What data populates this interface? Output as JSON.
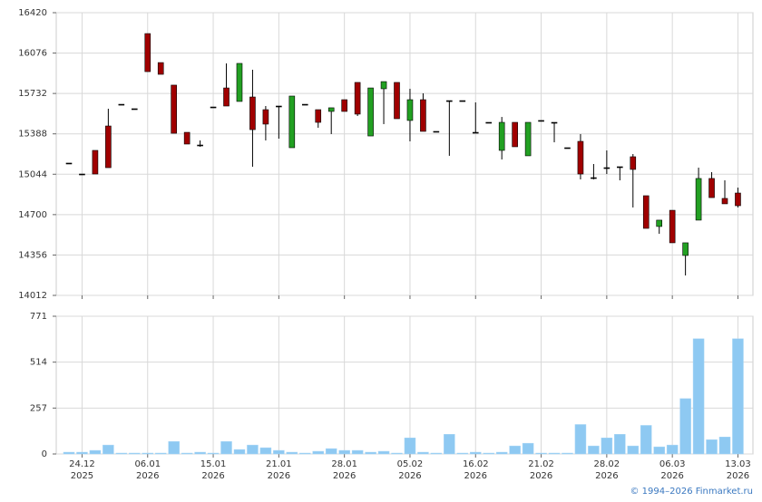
{
  "chart_data": {
    "type": "candlestick",
    "categories": [
      null,
      [
        "24.12",
        "2025"
      ],
      null,
      null,
      null,
      null,
      [
        "06.01",
        "2026"
      ],
      null,
      null,
      null,
      null,
      [
        "15.01",
        "2026"
      ],
      null,
      null,
      null,
      null,
      [
        "21.01",
        "2026"
      ],
      null,
      null,
      null,
      null,
      [
        "28.01",
        "2026"
      ],
      null,
      null,
      null,
      null,
      [
        "05.02",
        "2026"
      ],
      null,
      null,
      null,
      null,
      [
        "16.02",
        "2026"
      ],
      null,
      null,
      null,
      null,
      [
        "21.02",
        "2026"
      ],
      null,
      null,
      null,
      null,
      [
        "28.02",
        "2026"
      ],
      null,
      null,
      null,
      null,
      [
        "06.03",
        "2026"
      ],
      null,
      null,
      null,
      null,
      [
        "13.03",
        "2026"
      ]
    ],
    "open": [
      15139,
      15046,
      15247,
      15455,
      15640,
      15602,
      16242,
      15995,
      15803,
      15401,
      15293,
      15617,
      15779,
      15664,
      15702,
      15594,
      15625,
      15270,
      15640,
      15594,
      15579,
      15679,
      15826,
      15370,
      15772,
      15826,
      15502,
      15679,
      15409,
      15671,
      15671,
      15401,
      15486,
      15247,
      15486,
      15201,
      15502,
      15486,
      15270,
      15324,
      15015,
      15100,
      15108,
      15193,
      14861,
      14599,
      14737,
      14352,
      14653,
      15008,
      14838,
      14884
    ],
    "high": [
      15139,
      15046,
      15247,
      15602,
      15640,
      15602,
      16242,
      15995,
      15803,
      15401,
      15332,
      15617,
      15988,
      15988,
      15934,
      15625,
      15625,
      15710,
      15640,
      15594,
      15610,
      15679,
      15826,
      15779,
      15833,
      15826,
      15772,
      15733,
      15409,
      15671,
      15671,
      15656,
      15486,
      15532,
      15486,
      15486,
      15502,
      15486,
      15270,
      15386,
      15131,
      15247,
      15108,
      15216,
      14861,
      14653,
      14737,
      14460,
      15100,
      15062,
      14992,
      14930
    ],
    "low": [
      15139,
      15046,
      15046,
      15100,
      15640,
      15602,
      15918,
      15895,
      15393,
      15301,
      15278,
      15617,
      15625,
      15664,
      15108,
      15332,
      15347,
      15270,
      15640,
      15440,
      15386,
      15579,
      15540,
      15370,
      15471,
      15517,
      15324,
      15409,
      15409,
      15201,
      15671,
      15401,
      15486,
      15170,
      15278,
      15201,
      15502,
      15316,
      15270,
      15000,
      15000,
      15046,
      14992,
      14761,
      14583,
      14537,
      14460,
      14182,
      14653,
      14845,
      14792,
      14761
    ],
    "close": [
      15139,
      15046,
      15046,
      15100,
      15640,
      15602,
      15918,
      15895,
      15393,
      15301,
      15293,
      15617,
      15625,
      15988,
      15424,
      15471,
      15625,
      15710,
      15640,
      15486,
      15610,
      15579,
      15556,
      15779,
      15833,
      15517,
      15679,
      15409,
      15409,
      15671,
      15671,
      15401,
      15486,
      15486,
      15278,
      15486,
      15502,
      15486,
      15270,
      15046,
      15015,
      15100,
      15108,
      15085,
      14583,
      14653,
      14460,
      14460,
      15008,
      14845,
      14792,
      14776
    ],
    "volume": [
      10,
      10,
      20,
      50,
      5,
      5,
      5,
      5,
      70,
      5,
      10,
      5,
      70,
      25,
      50,
      35,
      20,
      10,
      5,
      15,
      30,
      20,
      20,
      10,
      15,
      5,
      90,
      10,
      5,
      110,
      5,
      10,
      5,
      10,
      45,
      60,
      5,
      5,
      5,
      165,
      45,
      90,
      110,
      45,
      160,
      40,
      50,
      310,
      645,
      80,
      95,
      645
    ],
    "ylim": [
      14012,
      16420
    ],
    "yticks": [
      14012,
      14356,
      14700,
      15044,
      15388,
      15732,
      16076,
      16420
    ],
    "volume_ylim": [
      0,
      771
    ],
    "volume_yticks": [
      0,
      257,
      514,
      771
    ],
    "up_color": "#22a022",
    "down_color": "#a00000",
    "volume_color": "#8ec9f2",
    "grid": true
  },
  "footer": "© 1994–2026 Finmarket.ru"
}
